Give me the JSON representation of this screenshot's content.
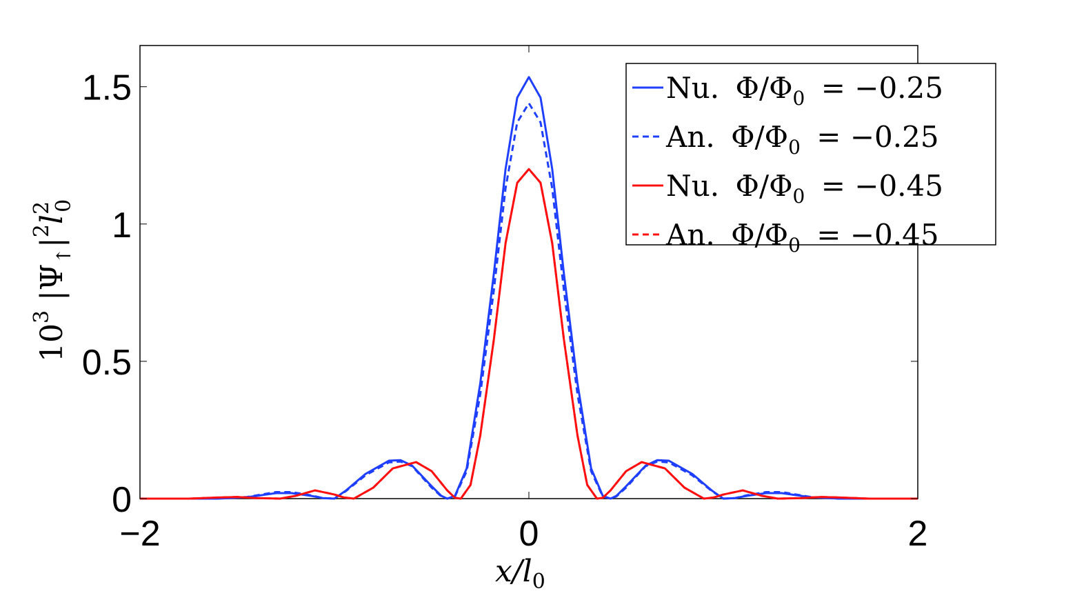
{
  "chart_data": {
    "type": "line",
    "title": "",
    "xlabel": "x/l",
    "xlabel_sub": "0",
    "ylabel_parts": {
      "prefix": "10",
      "prefix_sup": "3",
      "psi": "|Ψ",
      "psi_sub": "↑",
      "bar": "|",
      "bar_sup": "2",
      "l": "l",
      "l_sub": "0",
      "l_sup": "2"
    },
    "xlim": [
      -2,
      2
    ],
    "ylim": [
      0,
      1.65
    ],
    "xticks": [
      -2,
      0,
      2
    ],
    "xtick_labels": [
      "−2",
      "0",
      "2"
    ],
    "yticks": [
      0,
      0.5,
      1,
      1.5
    ],
    "ytick_labels": [
      "0",
      "0.5",
      "1",
      "1.5"
    ],
    "grid": false,
    "legend_position": "top-right",
    "series": [
      {
        "name": "Nu. Φ/Φ₀ = −0.25",
        "color": "#1f3fff",
        "style": "solid",
        "x": [
          -2.0,
          -1.6,
          -1.45,
          -1.35,
          -1.3,
          -1.22,
          -1.12,
          -1.06,
          -1.0,
          -0.94,
          -0.84,
          -0.72,
          -0.66,
          -0.6,
          -0.5,
          -0.45,
          -0.42,
          -0.38,
          -0.32,
          -0.25,
          -0.18,
          -0.12,
          -0.06,
          0.0,
          0.06,
          0.12,
          0.18,
          0.25,
          0.32,
          0.38,
          0.42,
          0.45,
          0.5,
          0.6,
          0.66,
          0.72,
          0.84,
          0.94,
          1.0,
          1.06,
          1.12,
          1.22,
          1.3,
          1.35,
          1.45,
          1.6,
          2.0
        ],
        "y": [
          0.0,
          0.0,
          0.005,
          0.015,
          0.02,
          0.02,
          0.01,
          0.002,
          0.0,
          0.03,
          0.09,
          0.138,
          0.14,
          0.12,
          0.045,
          0.01,
          0.0,
          0.01,
          0.11,
          0.42,
          0.82,
          1.2,
          1.46,
          1.535,
          1.46,
          1.2,
          0.82,
          0.42,
          0.11,
          0.01,
          0.0,
          0.01,
          0.045,
          0.12,
          0.14,
          0.138,
          0.09,
          0.03,
          0.0,
          0.002,
          0.01,
          0.02,
          0.02,
          0.015,
          0.005,
          0.0,
          0.0
        ]
      },
      {
        "name": "An. Φ/Φ₀ = −0.25",
        "color": "#1f3fff",
        "style": "dashed",
        "x": [
          -2.0,
          -1.6,
          -1.45,
          -1.35,
          -1.3,
          -1.22,
          -1.12,
          -1.06,
          -1.0,
          -0.94,
          -0.84,
          -0.72,
          -0.66,
          -0.6,
          -0.5,
          -0.45,
          -0.42,
          -0.38,
          -0.32,
          -0.25,
          -0.18,
          -0.12,
          -0.06,
          0.0,
          0.06,
          0.12,
          0.18,
          0.25,
          0.32,
          0.38,
          0.42,
          0.45,
          0.5,
          0.6,
          0.66,
          0.72,
          0.84,
          0.94,
          1.0,
          1.06,
          1.12,
          1.22,
          1.3,
          1.35,
          1.45,
          1.6,
          2.0
        ],
        "y": [
          0.0,
          0.0,
          0.006,
          0.018,
          0.024,
          0.024,
          0.012,
          0.002,
          0.0,
          0.028,
          0.085,
          0.132,
          0.135,
          0.118,
          0.04,
          0.008,
          0.0,
          0.008,
          0.1,
          0.38,
          0.76,
          1.13,
          1.37,
          1.44,
          1.37,
          1.13,
          0.76,
          0.38,
          0.1,
          0.008,
          0.0,
          0.008,
          0.04,
          0.118,
          0.135,
          0.132,
          0.085,
          0.028,
          0.0,
          0.002,
          0.012,
          0.024,
          0.024,
          0.018,
          0.006,
          0.0,
          0.0
        ]
      },
      {
        "name": "Nu. Φ/Φ₀ = −0.45",
        "color": "#ff1010",
        "style": "solid",
        "x": [
          -2.0,
          -1.75,
          -1.6,
          -1.5,
          -1.4,
          -1.28,
          -1.2,
          -1.1,
          -1.0,
          -0.95,
          -0.9,
          -0.8,
          -0.7,
          -0.58,
          -0.5,
          -0.42,
          -0.38,
          -0.35,
          -0.3,
          -0.25,
          -0.18,
          -0.12,
          -0.06,
          0.0,
          0.06,
          0.12,
          0.18,
          0.25,
          0.3,
          0.35,
          0.38,
          0.42,
          0.5,
          0.58,
          0.7,
          0.8,
          0.9,
          0.95,
          1.0,
          1.1,
          1.2,
          1.28,
          1.4,
          1.5,
          1.6,
          1.75,
          2.0
        ],
        "y": [
          0.0,
          0.0,
          0.004,
          0.006,
          0.002,
          0.0,
          0.01,
          0.03,
          0.015,
          0.004,
          0.0,
          0.04,
          0.11,
          0.133,
          0.1,
          0.03,
          0.003,
          0.0,
          0.05,
          0.23,
          0.58,
          0.93,
          1.15,
          1.2,
          1.15,
          0.93,
          0.58,
          0.23,
          0.05,
          0.0,
          0.003,
          0.03,
          0.1,
          0.133,
          0.11,
          0.04,
          0.0,
          0.004,
          0.015,
          0.03,
          0.01,
          0.0,
          0.002,
          0.006,
          0.004,
          0.0,
          0.0
        ]
      },
      {
        "name": "An. Φ/Φ₀ = −0.45",
        "color": "#ff1010",
        "style": "dashed",
        "x": [
          -2.0,
          -1.75,
          -1.6,
          -1.5,
          -1.4,
          -1.28,
          -1.2,
          -1.1,
          -1.0,
          -0.95,
          -0.9,
          -0.8,
          -0.7,
          -0.58,
          -0.5,
          -0.42,
          -0.38,
          -0.35,
          -0.3,
          -0.25,
          -0.18,
          -0.12,
          -0.06,
          0.0,
          0.06,
          0.12,
          0.18,
          0.25,
          0.3,
          0.35,
          0.38,
          0.42,
          0.5,
          0.58,
          0.7,
          0.8,
          0.9,
          0.95,
          1.0,
          1.1,
          1.2,
          1.28,
          1.4,
          1.5,
          1.6,
          1.75,
          2.0
        ],
        "y": [
          0.0,
          0.0,
          0.004,
          0.006,
          0.002,
          0.0,
          0.01,
          0.03,
          0.015,
          0.004,
          0.0,
          0.04,
          0.11,
          0.133,
          0.1,
          0.03,
          0.003,
          0.0,
          0.05,
          0.23,
          0.58,
          0.93,
          1.15,
          1.2,
          1.15,
          0.93,
          0.58,
          0.23,
          0.05,
          0.0,
          0.003,
          0.03,
          0.1,
          0.133,
          0.11,
          0.04,
          0.0,
          0.004,
          0.015,
          0.03,
          0.01,
          0.0,
          0.002,
          0.006,
          0.004,
          0.0,
          0.0
        ]
      }
    ],
    "legend": [
      {
        "prefix": "Nu.",
        "phi": "Φ/Φ",
        "sub": "0",
        "eq": "= −0.25",
        "color": "#1f3fff",
        "style": "solid"
      },
      {
        "prefix": "An.",
        "phi": "Φ/Φ",
        "sub": "0",
        "eq": "= −0.25",
        "color": "#1f3fff",
        "style": "dashed"
      },
      {
        "prefix": "Nu.",
        "phi": "Φ/Φ",
        "sub": "0",
        "eq": "= −0.45",
        "color": "#ff1010",
        "style": "solid"
      },
      {
        "prefix": "An.",
        "phi": "Φ/Φ",
        "sub": "0",
        "eq": "= −0.45",
        "color": "#ff1010",
        "style": "dashed"
      }
    ]
  }
}
